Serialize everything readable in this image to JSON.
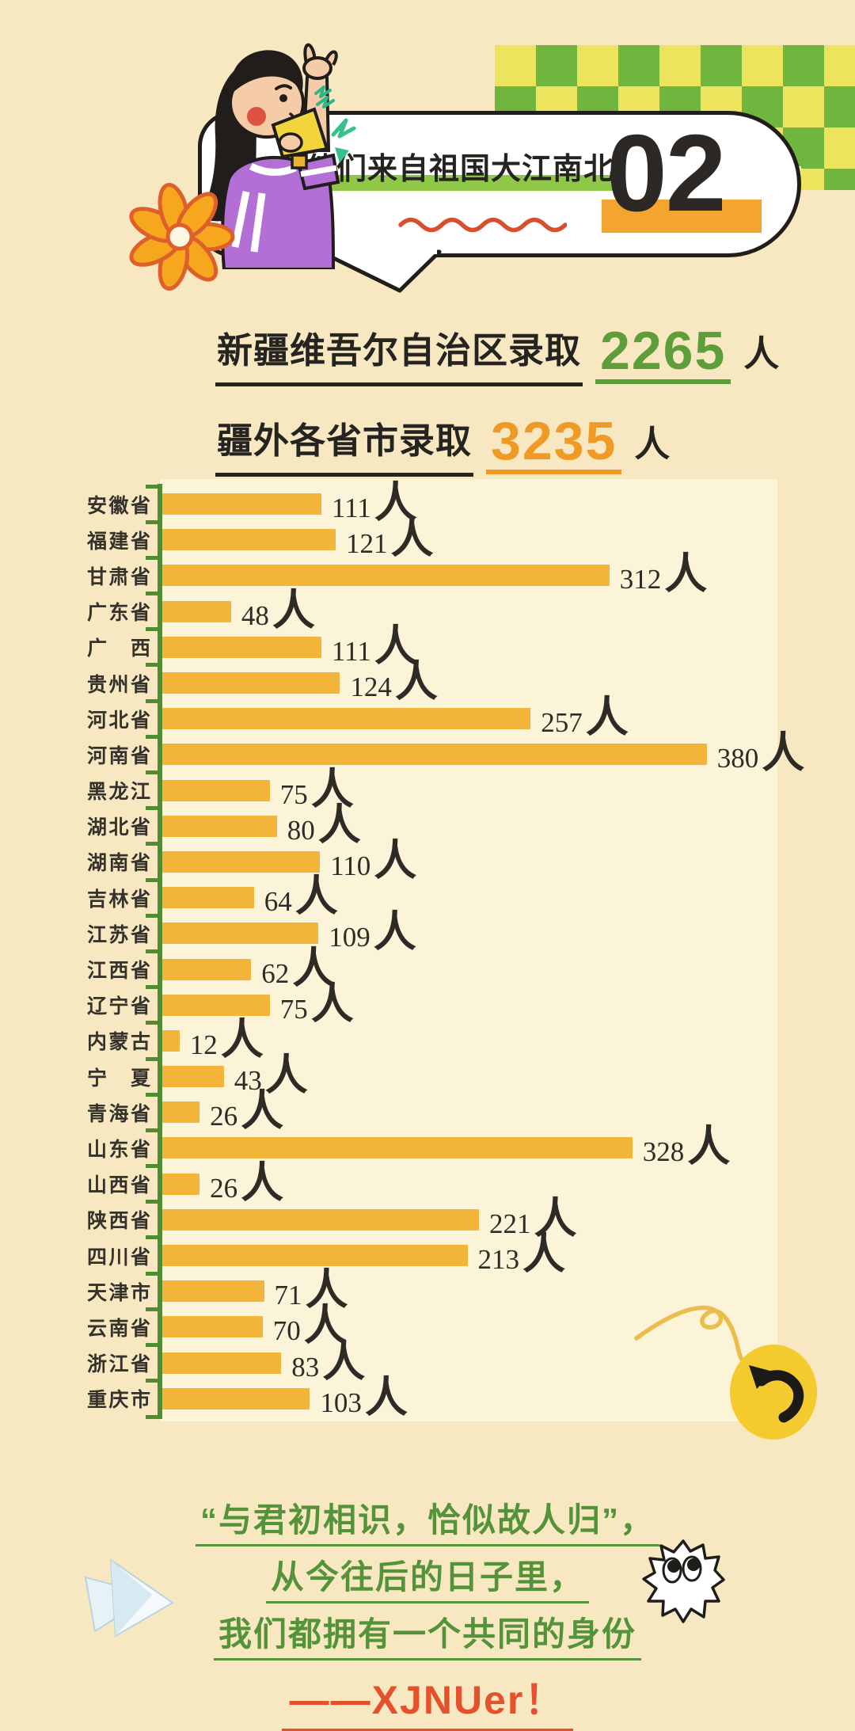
{
  "page": {
    "background_color": "#F7E8C1",
    "panel_color": "#FCF4D8"
  },
  "header": {
    "section_number": "02",
    "title": "他们来自祖国大江南北",
    "title_highlight_color": "#8FC746",
    "section_number_block_color": "#F3A52F"
  },
  "stats": {
    "line1": {
      "prefix": "新疆维吾尔自治区录取",
      "number": "2265",
      "suffix": "人",
      "number_color": "#5E9E3A"
    },
    "line2": {
      "prefix": "疆外各省市录取",
      "number": "3235",
      "suffix": "人",
      "number_color": "#F09A26"
    }
  },
  "chart_data": {
    "type": "bar",
    "orientation": "horizontal",
    "categories": [
      "安徽省",
      "福建省",
      "甘肃省",
      "广东省",
      "广西",
      "贵州省",
      "河北省",
      "河南省",
      "黑龙江",
      "湖北省",
      "湖南省",
      "吉林省",
      "江苏省",
      "江西省",
      "辽宁省",
      "内蒙古",
      "宁夏",
      "青海省",
      "山东省",
      "山西省",
      "陕西省",
      "四川省",
      "天津市",
      "云南省",
      "浙江省",
      "重庆市"
    ],
    "values": [
      111,
      121,
      312,
      48,
      111,
      124,
      257,
      380,
      75,
      80,
      110,
      64,
      109,
      62,
      75,
      12,
      43,
      26,
      328,
      26,
      221,
      213,
      71,
      70,
      83,
      103
    ],
    "unit": "人",
    "xlim": [
      0,
      380
    ],
    "grid": false,
    "value_labels": true,
    "bar_color": "#F3B63B",
    "axis_color": "#4F8C33",
    "label_color": "#35322C"
  },
  "footer": {
    "lines": [
      "“与君初相识，恰似故人归”，",
      "从今往后的日子里，",
      "我们都拥有一个共同的身份"
    ],
    "signature": "——XJNUer！",
    "text_color": "#55933A",
    "signature_color": "#E5512D"
  },
  "decor": {
    "checker_green": "#6FB53E",
    "checker_yellow": "#EDE45E",
    "icons": [
      "megaphone-girl-illustration",
      "flower-icon",
      "speech-bubble",
      "red-squiggle",
      "yellow-squiggle",
      "curved-arrow-icon",
      "paper-plane-icon",
      "googly-eyes-icon"
    ]
  }
}
